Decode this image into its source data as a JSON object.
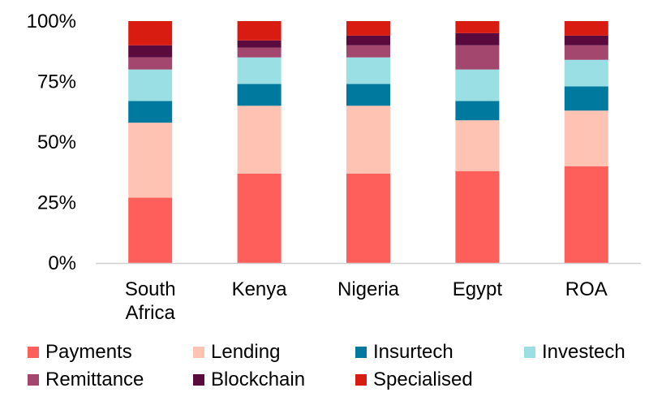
{
  "chart_data": {
    "type": "bar",
    "stacked": true,
    "categories": [
      "South Africa",
      "Kenya",
      "Nigeria",
      "Egypt",
      "ROA"
    ],
    "category_lines": [
      [
        "South",
        "Africa"
      ],
      [
        "Kenya"
      ],
      [
        "Nigeria"
      ],
      [
        "Egypt"
      ],
      [
        "ROA"
      ]
    ],
    "yticks": [
      "0%",
      "25%",
      "50%",
      "75%",
      "100%"
    ],
    "ylim": [
      0,
      100
    ],
    "legend_position": "bottom",
    "series": [
      {
        "name": "Payments",
        "color": "#FF5F5A",
        "values": [
          27,
          37,
          37,
          38,
          40
        ]
      },
      {
        "name": "Lending",
        "color": "#FFC3B3",
        "values": [
          31,
          28,
          28,
          21,
          23
        ]
      },
      {
        "name": "Insurtech",
        "color": "#00799E",
        "values": [
          9,
          9,
          9,
          8,
          10
        ]
      },
      {
        "name": "Investech",
        "color": "#9ADFE3",
        "values": [
          13,
          11,
          11,
          13,
          11
        ]
      },
      {
        "name": "Remittance",
        "color": "#A3476E",
        "values": [
          5,
          4,
          5,
          10,
          6
        ]
      },
      {
        "name": "Blockchain",
        "color": "#5A0A3C",
        "values": [
          5,
          3,
          4,
          5,
          4
        ]
      },
      {
        "name": "Specialised",
        "color": "#D91C12",
        "values": [
          10,
          8,
          6,
          5,
          6
        ]
      }
    ]
  }
}
